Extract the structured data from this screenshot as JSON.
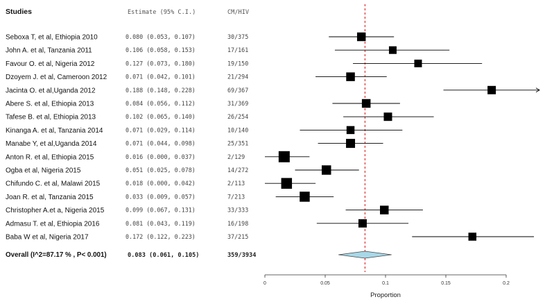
{
  "chart_data": {
    "type": "forest",
    "headers": {
      "study": "Studies",
      "estimate": "Estimate (95% C.I.)",
      "count": "CM/HIV"
    },
    "studies": [
      {
        "label": "Seboxa T, et al, Ethiopia 2010",
        "est": 0.08,
        "lo": 0.053,
        "hi": 0.107,
        "estimate_text": "0.080 (0.053, 0.107)",
        "count_text": "30/375",
        "weight": 0.55
      },
      {
        "label": "John A. et al, Tanzania 2011",
        "est": 0.106,
        "lo": 0.058,
        "hi": 0.153,
        "estimate_text": "0.106 (0.058, 0.153)",
        "count_text": "17/161",
        "weight": 0.4
      },
      {
        "label": "Favour O. et al, Nigeria 2012",
        "est": 0.127,
        "lo": 0.073,
        "hi": 0.18,
        "estimate_text": "0.127 (0.073, 0.180)",
        "count_text": "19/150",
        "weight": 0.4
      },
      {
        "label": "Dzoyem J. et al, Cameroon 2012",
        "est": 0.071,
        "lo": 0.042,
        "hi": 0.101,
        "estimate_text": "0.071 (0.042, 0.101)",
        "count_text": "21/294",
        "weight": 0.55
      },
      {
        "label": "Jacinta O. et al,Uganda 2012",
        "est": 0.188,
        "lo": 0.148,
        "hi": 0.228,
        "estimate_text": "0.188 (0.148, 0.228)",
        "count_text": "69/367",
        "weight": 0.5,
        "arrow_right": true
      },
      {
        "label": "Abere S. et al, Ethiopia 2013",
        "est": 0.084,
        "lo": 0.056,
        "hi": 0.112,
        "estimate_text": "0.084 (0.056, 0.112)",
        "count_text": "31/369",
        "weight": 0.55
      },
      {
        "label": "Tafese B. et al,  Ethiopia 2013",
        "est": 0.102,
        "lo": 0.065,
        "hi": 0.14,
        "estimate_text": "0.102 (0.065, 0.140)",
        "count_text": "26/254",
        "weight": 0.5
      },
      {
        "label": "Kinanga A. et al, Tanzania 2014",
        "est": 0.071,
        "lo": 0.029,
        "hi": 0.114,
        "estimate_text": "0.071 (0.029, 0.114)",
        "count_text": "10/140",
        "weight": 0.45
      },
      {
        "label": "Manabe Y,  et al,Uganda 2014",
        "est": 0.071,
        "lo": 0.044,
        "hi": 0.098,
        "estimate_text": "0.071 (0.044, 0.098)",
        "count_text": "25/351",
        "weight": 0.6
      },
      {
        "label": "Anton R. et al, Ethiopia 2015",
        "est": 0.016,
        "lo": 0.0,
        "hi": 0.037,
        "estimate_text": "0.016 (0.000, 0.037)",
        "count_text": "2/129",
        "weight": 0.9
      },
      {
        "label": "Ogba et al, Nigeria 2015",
        "est": 0.051,
        "lo": 0.025,
        "hi": 0.078,
        "estimate_text": "0.051 (0.025, 0.078)",
        "count_text": "14/272",
        "weight": 0.65
      },
      {
        "label": "Chifundo C. et al, Malawi 2015",
        "est": 0.018,
        "lo": 0.0,
        "hi": 0.042,
        "estimate_text": "0.018 (0.000, 0.042)",
        "count_text": "2/113",
        "weight": 0.85
      },
      {
        "label": "Joan R. et al, Tanzania 2015",
        "est": 0.033,
        "lo": 0.009,
        "hi": 0.057,
        "estimate_text": "0.033 (0.009, 0.057)",
        "count_text": "7/213",
        "weight": 0.75
      },
      {
        "label": "Christopher A.et a, Nigeria 2015",
        "est": 0.099,
        "lo": 0.067,
        "hi": 0.131,
        "estimate_text": "0.099 (0.067, 0.131)",
        "count_text": "33/333",
        "weight": 0.55
      },
      {
        "label": "Admasu T. et al, Ethiopia 2016",
        "est": 0.081,
        "lo": 0.043,
        "hi": 0.119,
        "estimate_text": "0.081 (0.043, 0.119)",
        "count_text": "16/198",
        "weight": 0.5
      },
      {
        "label": "Baba W et al, Nigeria 2017",
        "est": 0.172,
        "lo": 0.122,
        "hi": 0.223,
        "estimate_text": "0.172 (0.122, 0.223)",
        "count_text": "37/215",
        "weight": 0.45
      }
    ],
    "overall": {
      "label": "Overall (I^2=87.17 % , P< 0.001)",
      "est": 0.083,
      "lo": 0.061,
      "hi": 0.105,
      "estimate_text": "0.083 (0.061, 0.105)",
      "count_text": "359/3934"
    },
    "xlabel": "Proportion",
    "xticks": [
      0,
      0.05,
      0.1,
      0.15,
      0.2
    ],
    "xtick_labels": [
      "0",
      "0.05",
      "0.1",
      "0.15",
      "0.2"
    ],
    "xlim": [
      0,
      0.2
    ],
    "reference_line": 0.083,
    "colors": {
      "point": "#000000",
      "ci_line": "#000000",
      "reference_line": "#e03030",
      "diamond_fill": "#a8d8e8",
      "diamond_stroke": "#444444"
    }
  }
}
